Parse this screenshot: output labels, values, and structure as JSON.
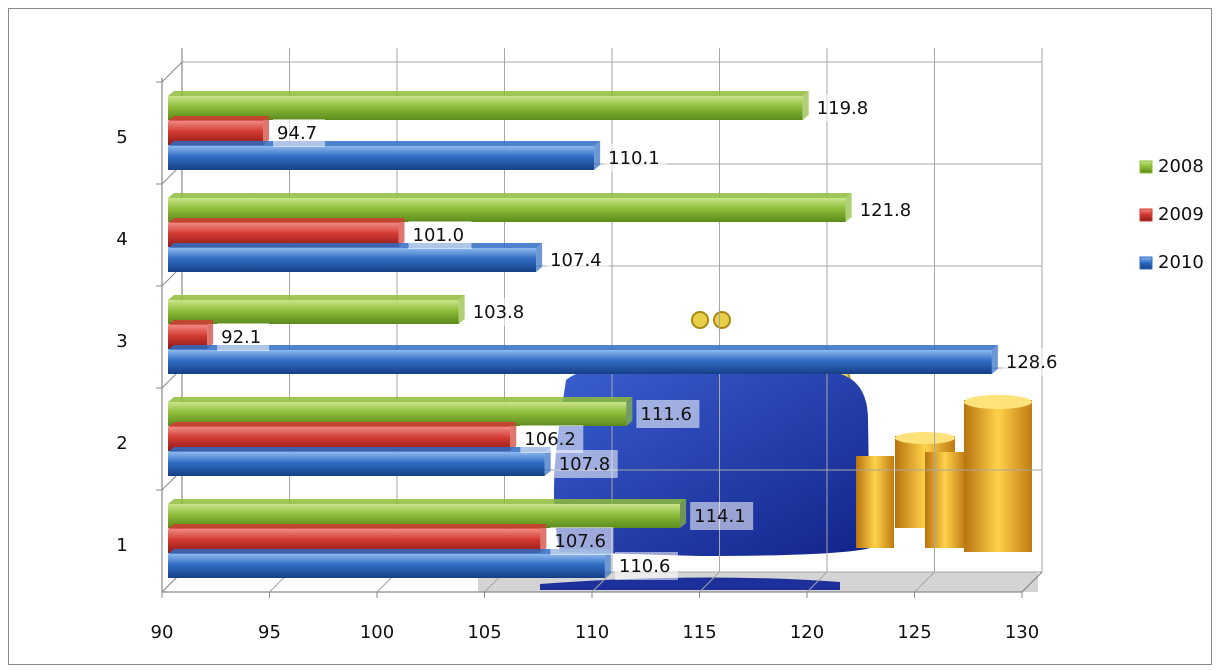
{
  "chart_data": {
    "type": "bar",
    "orientation": "horizontal",
    "categories": [
      "1",
      "2",
      "3",
      "4",
      "5"
    ],
    "series": [
      {
        "name": "2008",
        "values": [
          114.1,
          111.6,
          103.8,
          121.8,
          119.8
        ]
      },
      {
        "name": "2009",
        "values": [
          107.6,
          106.2,
          92.1,
          101.0,
          94.7
        ]
      },
      {
        "name": "2010",
        "values": [
          110.6,
          107.8,
          128.6,
          107.4,
          110.1
        ]
      }
    ],
    "data_labels": [
      [
        "114.1",
        "111.6",
        "103.8",
        "121.8",
        "119.8"
      ],
      [
        "107.6",
        "106.2",
        "92.1",
        "101.0",
        "94.7"
      ],
      [
        "110.6",
        "107.8",
        "128.6",
        "107.4",
        "110.1"
      ]
    ],
    "x_ticks": [
      "90",
      "95",
      "100",
      "105",
      "110",
      "115",
      "120",
      "125",
      "130"
    ],
    "xlim": [
      90,
      130
    ],
    "grid": true,
    "legend_position": "right",
    "title": "",
    "xlabel": "",
    "ylabel": "",
    "colors": {
      "2008": "#8ebc3a",
      "2009": "#d23a32",
      "2010": "#2f6cc3"
    }
  }
}
